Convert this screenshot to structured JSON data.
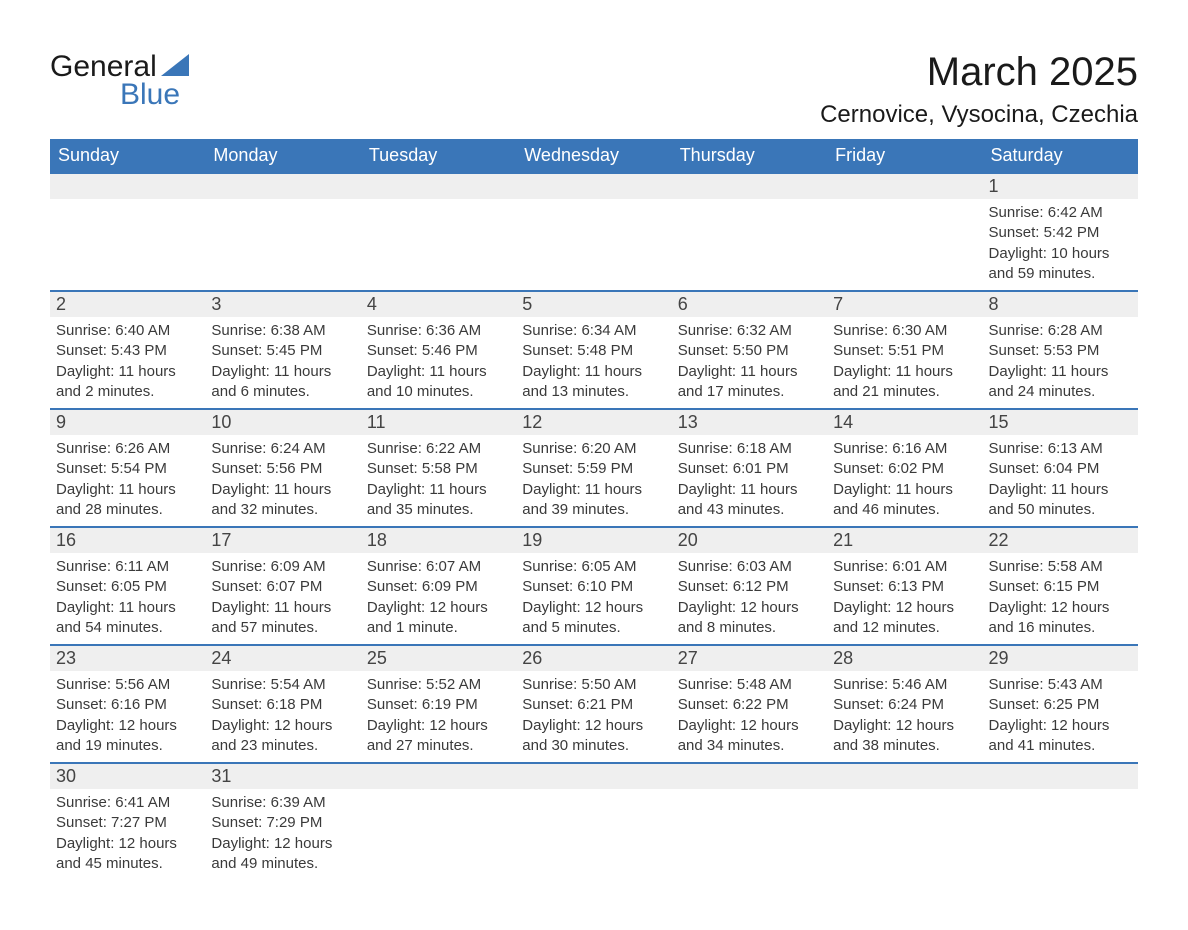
{
  "logo": {
    "word1": "General",
    "word2": "Blue"
  },
  "title": "March 2025",
  "location": "Cernovice, Vysocina, Czechia",
  "colors": {
    "header_bg": "#3a76b8",
    "header_text": "#ffffff",
    "daynum_bg": "#efefef",
    "row_border": "#3a76b8",
    "logo_blue": "#3a76b8",
    "text": "#3a3a3a",
    "background": "#ffffff"
  },
  "day_headers": [
    "Sunday",
    "Monday",
    "Tuesday",
    "Wednesday",
    "Thursday",
    "Friday",
    "Saturday"
  ],
  "weeks": [
    {
      "nums": [
        "",
        "",
        "",
        "",
        "",
        "",
        "1"
      ],
      "sunrise": [
        "",
        "",
        "",
        "",
        "",
        "",
        "Sunrise: 6:42 AM"
      ],
      "sunset": [
        "",
        "",
        "",
        "",
        "",
        "",
        "Sunset: 5:42 PM"
      ],
      "day1": [
        "",
        "",
        "",
        "",
        "",
        "",
        "Daylight: 10 hours"
      ],
      "day2": [
        "",
        "",
        "",
        "",
        "",
        "",
        "and 59 minutes."
      ]
    },
    {
      "nums": [
        "2",
        "3",
        "4",
        "5",
        "6",
        "7",
        "8"
      ],
      "sunrise": [
        "Sunrise: 6:40 AM",
        "Sunrise: 6:38 AM",
        "Sunrise: 6:36 AM",
        "Sunrise: 6:34 AM",
        "Sunrise: 6:32 AM",
        "Sunrise: 6:30 AM",
        "Sunrise: 6:28 AM"
      ],
      "sunset": [
        "Sunset: 5:43 PM",
        "Sunset: 5:45 PM",
        "Sunset: 5:46 PM",
        "Sunset: 5:48 PM",
        "Sunset: 5:50 PM",
        "Sunset: 5:51 PM",
        "Sunset: 5:53 PM"
      ],
      "day1": [
        "Daylight: 11 hours",
        "Daylight: 11 hours",
        "Daylight: 11 hours",
        "Daylight: 11 hours",
        "Daylight: 11 hours",
        "Daylight: 11 hours",
        "Daylight: 11 hours"
      ],
      "day2": [
        "and 2 minutes.",
        "and 6 minutes.",
        "and 10 minutes.",
        "and 13 minutes.",
        "and 17 minutes.",
        "and 21 minutes.",
        "and 24 minutes."
      ]
    },
    {
      "nums": [
        "9",
        "10",
        "11",
        "12",
        "13",
        "14",
        "15"
      ],
      "sunrise": [
        "Sunrise: 6:26 AM",
        "Sunrise: 6:24 AM",
        "Sunrise: 6:22 AM",
        "Sunrise: 6:20 AM",
        "Sunrise: 6:18 AM",
        "Sunrise: 6:16 AM",
        "Sunrise: 6:13 AM"
      ],
      "sunset": [
        "Sunset: 5:54 PM",
        "Sunset: 5:56 PM",
        "Sunset: 5:58 PM",
        "Sunset: 5:59 PM",
        "Sunset: 6:01 PM",
        "Sunset: 6:02 PM",
        "Sunset: 6:04 PM"
      ],
      "day1": [
        "Daylight: 11 hours",
        "Daylight: 11 hours",
        "Daylight: 11 hours",
        "Daylight: 11 hours",
        "Daylight: 11 hours",
        "Daylight: 11 hours",
        "Daylight: 11 hours"
      ],
      "day2": [
        "and 28 minutes.",
        "and 32 minutes.",
        "and 35 minutes.",
        "and 39 minutes.",
        "and 43 minutes.",
        "and 46 minutes.",
        "and 50 minutes."
      ]
    },
    {
      "nums": [
        "16",
        "17",
        "18",
        "19",
        "20",
        "21",
        "22"
      ],
      "sunrise": [
        "Sunrise: 6:11 AM",
        "Sunrise: 6:09 AM",
        "Sunrise: 6:07 AM",
        "Sunrise: 6:05 AM",
        "Sunrise: 6:03 AM",
        "Sunrise: 6:01 AM",
        "Sunrise: 5:58 AM"
      ],
      "sunset": [
        "Sunset: 6:05 PM",
        "Sunset: 6:07 PM",
        "Sunset: 6:09 PM",
        "Sunset: 6:10 PM",
        "Sunset: 6:12 PM",
        "Sunset: 6:13 PM",
        "Sunset: 6:15 PM"
      ],
      "day1": [
        "Daylight: 11 hours",
        "Daylight: 11 hours",
        "Daylight: 12 hours",
        "Daylight: 12 hours",
        "Daylight: 12 hours",
        "Daylight: 12 hours",
        "Daylight: 12 hours"
      ],
      "day2": [
        "and 54 minutes.",
        "and 57 minutes.",
        "and 1 minute.",
        "and 5 minutes.",
        "and 8 minutes.",
        "and 12 minutes.",
        "and 16 minutes."
      ]
    },
    {
      "nums": [
        "23",
        "24",
        "25",
        "26",
        "27",
        "28",
        "29"
      ],
      "sunrise": [
        "Sunrise: 5:56 AM",
        "Sunrise: 5:54 AM",
        "Sunrise: 5:52 AM",
        "Sunrise: 5:50 AM",
        "Sunrise: 5:48 AM",
        "Sunrise: 5:46 AM",
        "Sunrise: 5:43 AM"
      ],
      "sunset": [
        "Sunset: 6:16 PM",
        "Sunset: 6:18 PM",
        "Sunset: 6:19 PM",
        "Sunset: 6:21 PM",
        "Sunset: 6:22 PM",
        "Sunset: 6:24 PM",
        "Sunset: 6:25 PM"
      ],
      "day1": [
        "Daylight: 12 hours",
        "Daylight: 12 hours",
        "Daylight: 12 hours",
        "Daylight: 12 hours",
        "Daylight: 12 hours",
        "Daylight: 12 hours",
        "Daylight: 12 hours"
      ],
      "day2": [
        "and 19 minutes.",
        "and 23 minutes.",
        "and 27 minutes.",
        "and 30 minutes.",
        "and 34 minutes.",
        "and 38 minutes.",
        "and 41 minutes."
      ]
    },
    {
      "nums": [
        "30",
        "31",
        "",
        "",
        "",
        "",
        ""
      ],
      "sunrise": [
        "Sunrise: 6:41 AM",
        "Sunrise: 6:39 AM",
        "",
        "",
        "",
        "",
        ""
      ],
      "sunset": [
        "Sunset: 7:27 PM",
        "Sunset: 7:29 PM",
        "",
        "",
        "",
        "",
        ""
      ],
      "day1": [
        "Daylight: 12 hours",
        "Daylight: 12 hours",
        "",
        "",
        "",
        "",
        ""
      ],
      "day2": [
        "and 45 minutes.",
        "and 49 minutes.",
        "",
        "",
        "",
        "",
        ""
      ]
    }
  ]
}
